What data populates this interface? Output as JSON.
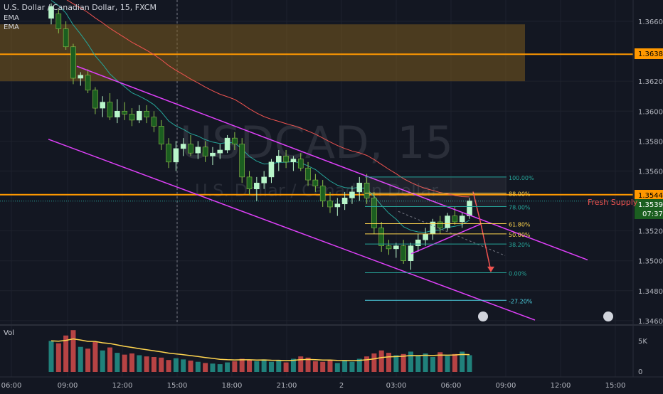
{
  "header": {
    "title": "U.S. Dollar / Canadian Dollar, 15, FXCM",
    "indicators": [
      "EMA",
      "EMA"
    ]
  },
  "watermark": {
    "symbol": "USDCAD, 15",
    "description": "U.S. Dollar / Canadian Dollar"
  },
  "annotations": {
    "supply_label": "Fresh Supply",
    "price_box": "1.35442",
    "price_box_2": "1.36380",
    "last_price": "1.35399",
    "countdown": "07:37"
  },
  "volume_panel": {
    "label": "Vol",
    "ticks": [
      "5K",
      "0"
    ]
  },
  "colors": {
    "background": "#131722",
    "bull": "#b9f6ca",
    "bear": "#1b5e20",
    "channel": "#e040fb",
    "level": "#ff9800",
    "supply_zone": "#7a5a1e",
    "ema_fast": "#26a69a",
    "ema_slow": "#ef5350",
    "volume_up": "#26a69a",
    "volume_down": "#ef5350",
    "volume_ma": "#ffd54f"
  },
  "chart_data": {
    "type": "candlestick",
    "symbol": "USDCAD",
    "timeframe": "15",
    "y_ticks": [
      1.366,
      1.362,
      1.36,
      1.358,
      1.356,
      1.352,
      1.35,
      1.348,
      1.346
    ],
    "y_tick_labels": [
      "1.36600",
      "1.36200",
      "1.36000",
      "1.35800",
      "1.35600",
      "1.35200",
      "1.35000",
      "1.34800",
      "1.34600"
    ],
    "ylim": [
      1.3459,
      1.3676
    ],
    "x_ticks": [
      "06:00",
      "09:00",
      "12:00",
      "15:00",
      "18:00",
      "21:00",
      "2",
      "03:00",
      "06:00",
      "09:00",
      "12:00",
      "15:00"
    ],
    "ohlc": [
      [
        1.3662,
        1.3672,
        1.3658,
        1.367
      ],
      [
        1.3665,
        1.3668,
        1.3652,
        1.3655
      ],
      [
        1.3655,
        1.366,
        1.3641,
        1.3643
      ],
      [
        1.3643,
        1.3645,
        1.3618,
        1.3622
      ],
      [
        1.3622,
        1.3626,
        1.3617,
        1.3624
      ],
      [
        1.3624,
        1.3628,
        1.3612,
        1.3614
      ],
      [
        1.3614,
        1.3616,
        1.3598,
        1.3602
      ],
      [
        1.3602,
        1.361,
        1.3596,
        1.3606
      ],
      [
        1.3606,
        1.3612,
        1.3594,
        1.3596
      ],
      [
        1.3596,
        1.3608,
        1.3592,
        1.36
      ],
      [
        1.36,
        1.3606,
        1.3594,
        1.3598
      ],
      [
        1.3598,
        1.3602,
        1.359,
        1.3594
      ],
      [
        1.3594,
        1.3604,
        1.3592,
        1.36
      ],
      [
        1.36,
        1.3604,
        1.3592,
        1.3596
      ],
      [
        1.3596,
        1.36,
        1.3586,
        1.359
      ],
      [
        1.359,
        1.3594,
        1.3574,
        1.3578
      ],
      [
        1.3578,
        1.3582,
        1.3562,
        1.3566
      ],
      [
        1.3566,
        1.358,
        1.356,
        1.3575
      ],
      [
        1.3575,
        1.3582,
        1.357,
        1.3578
      ],
      [
        1.3578,
        1.3584,
        1.357,
        1.3572
      ],
      [
        1.3572,
        1.358,
        1.3568,
        1.3576
      ],
      [
        1.3576,
        1.358,
        1.3566,
        1.357
      ],
      [
        1.357,
        1.3576,
        1.3564,
        1.3572
      ],
      [
        1.3572,
        1.3578,
        1.3568,
        1.3574
      ],
      [
        1.3574,
        1.3584,
        1.3572,
        1.3582
      ],
      [
        1.3582,
        1.3586,
        1.3574,
        1.3578
      ],
      [
        1.3578,
        1.3582,
        1.3552,
        1.3556
      ],
      [
        1.3556,
        1.356,
        1.3544,
        1.3548
      ],
      [
        1.3548,
        1.3556,
        1.354,
        1.3552
      ],
      [
        1.3552,
        1.356,
        1.3548,
        1.3556
      ],
      [
        1.3556,
        1.3568,
        1.3552,
        1.3566
      ],
      [
        1.3566,
        1.3574,
        1.356,
        1.357
      ],
      [
        1.357,
        1.3574,
        1.3562,
        1.3566
      ],
      [
        1.3566,
        1.357,
        1.356,
        1.3568
      ],
      [
        1.3568,
        1.3572,
        1.356,
        1.3562
      ],
      [
        1.3562,
        1.3566,
        1.355,
        1.3554
      ],
      [
        1.3554,
        1.3558,
        1.3546,
        1.355
      ],
      [
        1.355,
        1.3554,
        1.3536,
        1.354
      ],
      [
        1.354,
        1.3546,
        1.3532,
        1.3536
      ],
      [
        1.3536,
        1.3542,
        1.353,
        1.3538
      ],
      [
        1.3538,
        1.3546,
        1.3534,
        1.3542
      ],
      [
        1.3542,
        1.355,
        1.3538,
        1.3546
      ],
      [
        1.3546,
        1.3556,
        1.354,
        1.3552
      ],
      [
        1.3552,
        1.3558,
        1.3538,
        1.3542
      ],
      [
        1.3542,
        1.3546,
        1.3518,
        1.3522
      ],
      [
        1.3522,
        1.3526,
        1.3506,
        1.351
      ],
      [
        1.351,
        1.3514,
        1.3504,
        1.3508
      ],
      [
        1.3508,
        1.3512,
        1.3502,
        1.351
      ],
      [
        1.351,
        1.3514,
        1.3498,
        1.35
      ],
      [
        1.35,
        1.3512,
        1.3494,
        1.351
      ],
      [
        1.351,
        1.3518,
        1.3506,
        1.3514
      ],
      [
        1.3514,
        1.3522,
        1.351,
        1.3518
      ],
      [
        1.3518,
        1.3528,
        1.3514,
        1.3526
      ],
      [
        1.3526,
        1.353,
        1.3518,
        1.3522
      ],
      [
        1.3522,
        1.3532,
        1.352,
        1.353
      ],
      [
        1.353,
        1.3536,
        1.3524,
        1.3526
      ],
      [
        1.3526,
        1.3532,
        1.3522,
        1.353
      ],
      [
        1.353,
        1.3542,
        1.3528,
        1.354
      ]
    ],
    "fib_levels": [
      {
        "label": "100.00%",
        "value": 1.3556
      },
      {
        "label": "88.00%",
        "value": 1.35452
      },
      {
        "label": "78.00%",
        "value": 1.35362
      },
      {
        "label": "61.80%",
        "value": 1.35248
      },
      {
        "label": "50.00%",
        "value": 1.3518
      },
      {
        "label": "38.20%",
        "value": 1.35112
      },
      {
        "label": "0.00%",
        "value": 1.3492
      },
      {
        "label": "-27.20%",
        "value": 1.34736
      }
    ],
    "levels": [
      {
        "label": "1.35442",
        "value": 1.35442
      },
      {
        "label": "1.36380",
        "value": 1.3638
      }
    ],
    "supply_zone": [
      1.362,
      1.3658
    ],
    "last_price": 1.35399,
    "volume": [
      5200,
      4800,
      6100,
      7000,
      4200,
      3900,
      5000,
      3600,
      4100,
      3200,
      2900,
      3100,
      2800,
      2600,
      2500,
      2400,
      2000,
      2300,
      2100,
      1900,
      1700,
      1500,
      1400,
      1300,
      1600,
      1800,
      2200,
      2000,
      1800,
      2100,
      1700,
      1900,
      1600,
      2200,
      2600,
      2400,
      1800,
      1700,
      2000,
      1500,
      1900,
      1700,
      2200,
      2600,
      3100,
      3600,
      3200,
      2800,
      3000,
      3400,
      2700,
      3100,
      2500,
      3300,
      2700,
      3000,
      3400,
      2800
    ]
  }
}
